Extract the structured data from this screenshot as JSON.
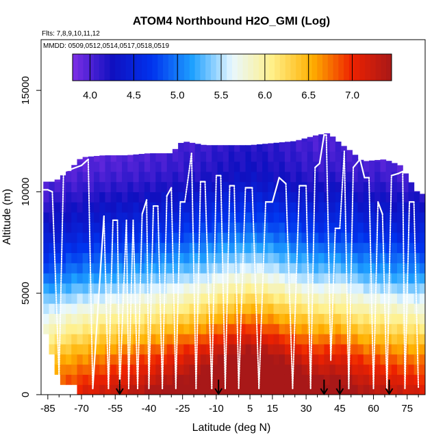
{
  "chart_data": {
    "type": "heatmap",
    "title": "ATOM4 Northbound H2O_GMI (Log)",
    "flights_note": "Flts: 7,8,9,10,11,12",
    "dates_note": "MMDD: 0509,0512,0514,0517,0518,0519",
    "xlabel": "Latitude (deg N)",
    "ylabel": "Altitude (m)",
    "xlim": [
      -88,
      83
    ],
    "ylim": [
      0,
      17500
    ],
    "x_ticks": [
      -85,
      -70,
      -55,
      -40,
      -25,
      -10,
      5,
      15,
      30,
      45,
      60,
      75
    ],
    "x_minor_ticks": [
      -80,
      -75,
      -65,
      -60,
      -50,
      -45,
      -35,
      -30,
      -20,
      -15,
      -5,
      0,
      10,
      20,
      25,
      35,
      40,
      50,
      55,
      65,
      70,
      80
    ],
    "y_ticks": [
      0,
      5000,
      10000,
      15000
    ],
    "colorbar": {
      "min": 3.8,
      "max": 7.45,
      "ticks": [
        4.0,
        4.5,
        5.0,
        5.5,
        6.0,
        6.5,
        7.0
      ],
      "tick_labels": [
        "4.0",
        "4.5",
        "5.0",
        "5.5",
        "6.0",
        "6.5",
        "7.0"
      ],
      "colors": [
        "#7e2fe6",
        "#1010c0",
        "#0033ee",
        "#1ea0ff",
        "#e8f8ff",
        "#fff08a",
        "#ffb000",
        "#ee2200",
        "#a81818"
      ]
    },
    "bin_width_deg": 2.5,
    "bin_height_m": 500,
    "top_altitude_m": [
      [
        -87,
        10500
      ],
      [
        -82,
        10500
      ],
      [
        -76,
        11000
      ],
      [
        -70,
        11700
      ],
      [
        -60,
        11800
      ],
      [
        -50,
        11800
      ],
      [
        -40,
        11900
      ],
      [
        -30,
        11900
      ],
      [
        -25,
        12500
      ],
      [
        -15,
        12300
      ],
      [
        -5,
        12300
      ],
      [
        5,
        12300
      ],
      [
        15,
        12400
      ],
      [
        25,
        12500
      ],
      [
        35,
        12800
      ],
      [
        40,
        12900
      ],
      [
        45,
        12400
      ],
      [
        50,
        12000
      ],
      [
        55,
        11500
      ],
      [
        65,
        11600
      ],
      [
        72,
        11300
      ],
      [
        80,
        9900
      ]
    ],
    "bottom_altitude_m": [
      [
        -87,
        3500
      ],
      [
        -80,
        1000
      ],
      [
        -72,
        500
      ],
      [
        -68,
        0
      ],
      [
        -30,
        0
      ],
      [
        0,
        0
      ],
      [
        30,
        0
      ],
      [
        60,
        0
      ],
      [
        80,
        0
      ]
    ],
    "water_vapor_profile_log10": [
      [
        0,
        7.4
      ],
      [
        1000,
        7.1
      ],
      [
        2000,
        6.8
      ],
      [
        3000,
        6.4
      ],
      [
        4000,
        6.0
      ],
      [
        5000,
        5.6
      ],
      [
        6000,
        5.2
      ],
      [
        7000,
        4.9
      ],
      [
        8000,
        4.6
      ],
      [
        9000,
        4.4
      ],
      [
        10000,
        4.2
      ],
      [
        11000,
        4.05
      ],
      [
        12500,
        3.95
      ]
    ],
    "latitude_moisture_anomaly": [
      [
        -88,
        -0.6
      ],
      [
        -75,
        -0.35
      ],
      [
        -60,
        -0.15
      ],
      [
        -45,
        0.0
      ],
      [
        -30,
        0.2
      ],
      [
        -15,
        0.45
      ],
      [
        -5,
        0.7
      ],
      [
        5,
        0.85
      ],
      [
        15,
        0.7
      ],
      [
        25,
        0.45
      ],
      [
        35,
        0.25
      ],
      [
        45,
        0.3
      ],
      [
        55,
        0.05
      ],
      [
        70,
        -0.1
      ],
      [
        82,
        -0.2
      ]
    ],
    "aircraft_track": [
      [
        -87,
        10100
      ],
      [
        -85,
        10100
      ],
      [
        -83,
        10000
      ],
      [
        -80,
        1000
      ],
      [
        -78,
        11000
      ],
      [
        -75,
        11100
      ],
      [
        -70,
        11300
      ],
      [
        -67,
        11600
      ],
      [
        -65,
        300
      ],
      [
        -60,
        8800
      ],
      [
        -58,
        300
      ],
      [
        -56,
        8600
      ],
      [
        -54,
        8600
      ],
      [
        -53,
        300
      ],
      [
        -50,
        8600
      ],
      [
        -49,
        300
      ],
      [
        -47,
        8600
      ],
      [
        -45,
        300
      ],
      [
        -43,
        8900
      ],
      [
        -41,
        9600
      ],
      [
        -40,
        300
      ],
      [
        -38,
        9300
      ],
      [
        -36,
        9300
      ],
      [
        -34,
        300
      ],
      [
        -32,
        9800
      ],
      [
        -30,
        10200
      ],
      [
        -28,
        300
      ],
      [
        -26,
        9500
      ],
      [
        -24,
        9500
      ],
      [
        -21,
        11900
      ],
      [
        -19,
        300
      ],
      [
        -17,
        10500
      ],
      [
        -15,
        10500
      ],
      [
        -12,
        300
      ],
      [
        -10,
        10800
      ],
      [
        -8,
        10800
      ],
      [
        -6,
        300
      ],
      [
        -4,
        10300
      ],
      [
        -2,
        10300
      ],
      [
        0,
        300
      ],
      [
        3,
        10200
      ],
      [
        6,
        10200
      ],
      [
        9,
        300
      ],
      [
        12,
        9500
      ],
      [
        15,
        9500
      ],
      [
        18,
        10700
      ],
      [
        21,
        10400
      ],
      [
        24,
        300
      ],
      [
        27,
        10300
      ],
      [
        30,
        10300
      ],
      [
        32,
        300
      ],
      [
        34,
        11200
      ],
      [
        36,
        11400
      ],
      [
        38,
        12800
      ],
      [
        39,
        12800
      ],
      [
        41,
        1700
      ],
      [
        43,
        8200
      ],
      [
        45,
        8200
      ],
      [
        47,
        12000
      ],
      [
        49,
        300
      ],
      [
        51,
        11200
      ],
      [
        54,
        11600
      ],
      [
        56,
        10700
      ],
      [
        58,
        10700
      ],
      [
        60,
        300
      ],
      [
        62,
        9500
      ],
      [
        64,
        8900
      ],
      [
        66,
        300
      ],
      [
        68,
        10800
      ],
      [
        71,
        10900
      ],
      [
        73,
        11000
      ],
      [
        74,
        300
      ],
      [
        76,
        9500
      ],
      [
        78,
        9500
      ],
      [
        80,
        300
      ]
    ],
    "arrow_latitudes": [
      -53,
      -9,
      38,
      45,
      67
    ]
  }
}
